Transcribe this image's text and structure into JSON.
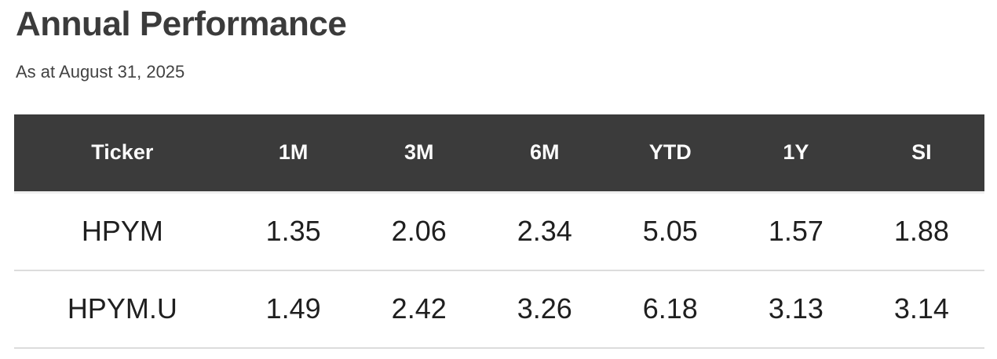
{
  "page": {
    "title": "Annual Performance",
    "subtitle": "As at August 31, 2025"
  },
  "colors": {
    "header_bg": "#3b3b3b",
    "header_text": "#fbfbfb",
    "title_text": "#3b3b3b",
    "subtitle_text": "#424242",
    "cell_text": "#1f1f1f",
    "divider": "#dcdcdc",
    "header_underline": "#efefef",
    "page_bg": "#ffffff"
  },
  "table": {
    "columns": [
      "Ticker",
      "1M",
      "3M",
      "6M",
      "YTD",
      "1Y",
      "SI"
    ],
    "rows": [
      {
        "ticker": "HPYM",
        "values": [
          "1.35",
          "2.06",
          "2.34",
          "5.05",
          "1.57",
          "1.88"
        ]
      },
      {
        "ticker": "HPYM.U",
        "values": [
          "1.49",
          "2.42",
          "3.26",
          "6.18",
          "3.13",
          "3.14"
        ]
      }
    ]
  },
  "chart_data": {
    "type": "table",
    "title": "Annual Performance",
    "subtitle": "As at August 31, 2025",
    "columns": [
      "Ticker",
      "1M",
      "3M",
      "6M",
      "YTD",
      "1Y",
      "SI"
    ],
    "rows": [
      [
        "HPYM",
        1.35,
        2.06,
        2.34,
        5.05,
        1.57,
        1.88
      ],
      [
        "HPYM.U",
        1.49,
        2.42,
        3.26,
        6.18,
        3.13,
        3.14
      ]
    ]
  }
}
